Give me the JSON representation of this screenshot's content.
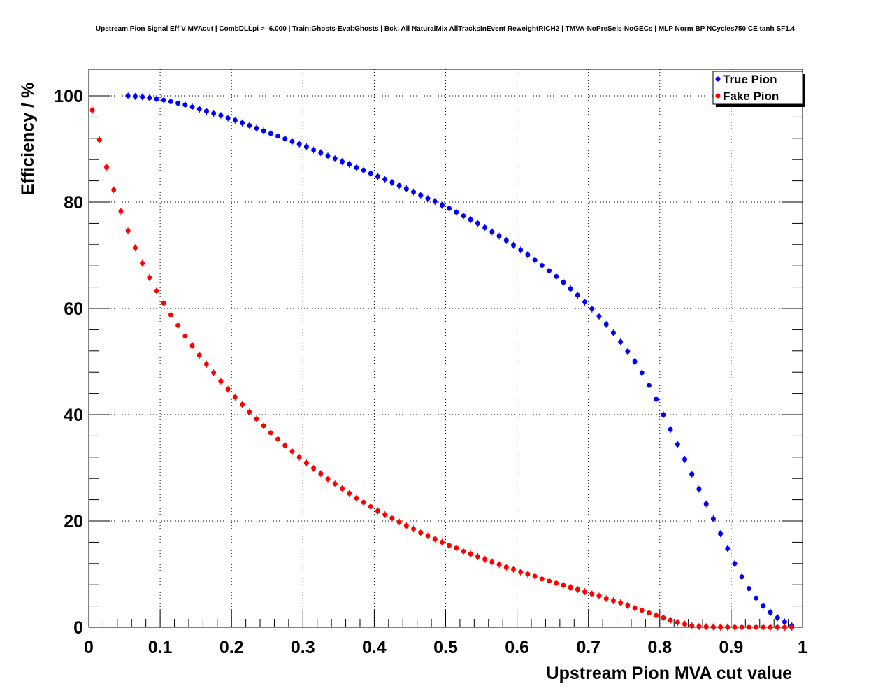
{
  "chart_data": {
    "type": "scatter",
    "title": "Upstream Pion Signal Eff V MVAcut | CombDLLpi > -6.000 | Train:Ghosts-Eval:Ghosts | Bck. All NaturalMix AllTracksInEvent ReweightRICH2 | TMVA-NoPreSels-NoGECs | MLP Norm BP NCycles750 CE tanh SF1.4",
    "xlabel": "Upstream Pion MVA cut value",
    "ylabel": "Efficiency / %",
    "xlim": [
      0,
      1
    ],
    "ylim": [
      0,
      105
    ],
    "x_ticks": [
      0,
      0.1,
      0.2,
      0.3,
      0.4,
      0.5,
      0.6,
      0.7,
      0.8,
      0.9,
      1
    ],
    "x_tick_labels": [
      "0",
      "0.1",
      "0.2",
      "0.3",
      "0.4",
      "0.5",
      "0.6",
      "0.7",
      "0.8",
      "0.9",
      "1"
    ],
    "y_ticks": [
      0,
      20,
      40,
      60,
      80,
      100
    ],
    "y_tick_labels": [
      "0",
      "20",
      "40",
      "60",
      "80",
      "100"
    ],
    "grid": true,
    "legend_position": "top-right",
    "x": [
      0.005,
      0.015,
      0.025,
      0.035,
      0.045,
      0.055,
      0.065,
      0.075,
      0.085,
      0.095,
      0.105,
      0.115,
      0.125,
      0.135,
      0.145,
      0.155,
      0.165,
      0.175,
      0.185,
      0.195,
      0.205,
      0.215,
      0.225,
      0.235,
      0.245,
      0.255,
      0.265,
      0.275,
      0.285,
      0.295,
      0.305,
      0.315,
      0.325,
      0.335,
      0.345,
      0.355,
      0.365,
      0.375,
      0.385,
      0.395,
      0.405,
      0.415,
      0.425,
      0.435,
      0.445,
      0.455,
      0.465,
      0.475,
      0.485,
      0.495,
      0.505,
      0.515,
      0.525,
      0.535,
      0.545,
      0.555,
      0.565,
      0.575,
      0.585,
      0.595,
      0.605,
      0.615,
      0.625,
      0.635,
      0.645,
      0.655,
      0.665,
      0.675,
      0.685,
      0.695,
      0.705,
      0.715,
      0.725,
      0.735,
      0.745,
      0.755,
      0.765,
      0.775,
      0.785,
      0.795,
      0.805,
      0.815,
      0.825,
      0.835,
      0.845,
      0.855,
      0.865,
      0.875,
      0.885,
      0.895,
      0.905,
      0.915,
      0.925,
      0.935,
      0.945,
      0.955,
      0.965,
      0.975,
      0.985
    ],
    "series": [
      {
        "name": "True Pion",
        "color": "#0000ff",
        "values": [
          100.0,
          99.9,
          99.8,
          99.6,
          99.4,
          99.2,
          98.9,
          98.6,
          98.3,
          97.9,
          97.5,
          97.1,
          96.7,
          96.3,
          95.8,
          95.4,
          94.9,
          94.4,
          93.9,
          93.4,
          92.9,
          92.4,
          91.9,
          91.4,
          90.9,
          90.4,
          89.8,
          89.3,
          88.7,
          88.2,
          87.6,
          87.1,
          86.5,
          86.0,
          85.4,
          84.8,
          84.3,
          83.7,
          83.1,
          82.5,
          81.9,
          81.3,
          80.7,
          80.1,
          79.4,
          78.8,
          78.1,
          77.4,
          76.7,
          76.0,
          75.2,
          74.4,
          73.6,
          72.8,
          71.9,
          71.0,
          70.1,
          69.1,
          68.1,
          67.1,
          66.0,
          64.9,
          63.7,
          62.5,
          61.2,
          59.9,
          58.5,
          57.0,
          55.4,
          53.7,
          51.9,
          50.0,
          47.9,
          45.5,
          42.9,
          40.0,
          37.2,
          34.4,
          31.6,
          28.8,
          26.0,
          23.2,
          20.4,
          17.6,
          14.8,
          12.0,
          9.5,
          7.3,
          5.5,
          4.0,
          2.8,
          1.8,
          1.0,
          0.3
        ],
        "x_offset_index": 5
      },
      {
        "name": "Fake Pion",
        "color": "#ff0000",
        "values": [
          97.3,
          91.7,
          86.6,
          82.3,
          78.3,
          74.6,
          71.4,
          68.5,
          65.8,
          63.3,
          61.0,
          58.8,
          56.8,
          54.8,
          53.0,
          51.2,
          49.5,
          47.9,
          46.3,
          44.8,
          43.3,
          41.9,
          40.5,
          39.2,
          37.9,
          36.6,
          35.4,
          34.2,
          33.1,
          32.0,
          30.9,
          29.9,
          28.9,
          27.9,
          27.0,
          26.1,
          25.2,
          24.3,
          23.5,
          22.7,
          21.9,
          21.2,
          20.5,
          19.8,
          19.1,
          18.5,
          17.8,
          17.2,
          16.6,
          16.0,
          15.4,
          14.9,
          14.3,
          13.8,
          13.3,
          12.8,
          12.3,
          11.8,
          11.3,
          10.9,
          10.4,
          10.0,
          9.6,
          9.1,
          8.7,
          8.3,
          7.9,
          7.5,
          7.1,
          6.7,
          6.3,
          5.9,
          5.4,
          5.0,
          4.6,
          4.1,
          3.6,
          3.2,
          2.7,
          2.2,
          1.8,
          1.3,
          0.9,
          0.6,
          0.3,
          0.15,
          0.1,
          0.05,
          0.03,
          0.02,
          0.01,
          0.0,
          0.0,
          0.0,
          0.0,
          0.0,
          0.0,
          0.0,
          0.0
        ]
      }
    ]
  }
}
